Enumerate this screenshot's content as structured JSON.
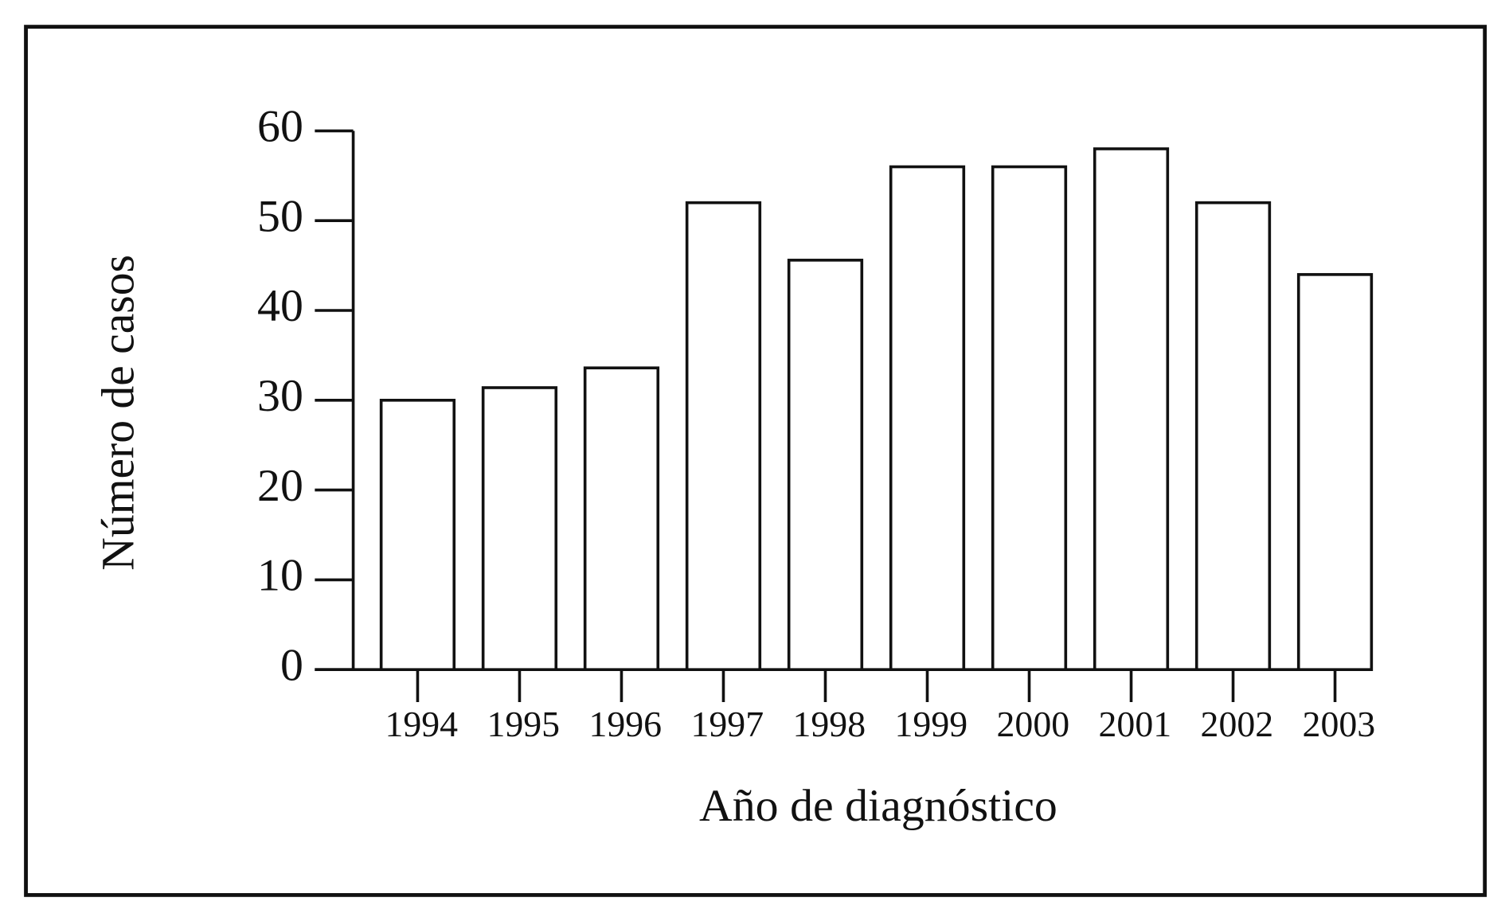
{
  "chart_data": {
    "type": "bar",
    "x_label": "Año de diagnóstico",
    "y_label": "Número de casos",
    "categories": [
      "1994",
      "1995",
      "1996",
      "1997",
      "1998",
      "1999",
      "2000",
      "2001",
      "2002",
      "2003"
    ],
    "values": [
      30,
      31.4,
      33.6,
      52,
      45.6,
      56,
      56,
      58,
      52,
      44
    ],
    "color": "#ffffff",
    "ylim": [
      0,
      60
    ],
    "yticks": [
      0,
      10,
      20,
      30,
      40,
      50,
      60
    ],
    "grid": false
  }
}
